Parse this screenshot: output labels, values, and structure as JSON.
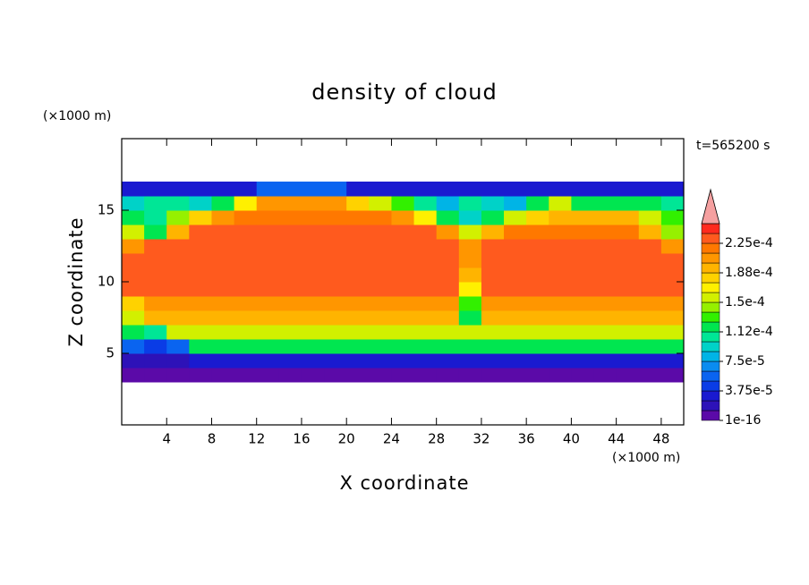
{
  "chart_data": {
    "type": "contour",
    "title": "density of cloud",
    "x_label": "X coordinate",
    "y_label": "Z coordinate",
    "x_unit": "(×1000 m)",
    "y_unit": "(×1000 m)",
    "time_label": "t=565200 s",
    "xlim": [
      0,
      50
    ],
    "ylim": [
      0,
      20
    ],
    "xticks": [
      4,
      8,
      12,
      16,
      20,
      24,
      28,
      32,
      36,
      40,
      44,
      48
    ],
    "yticks": [
      5,
      10,
      15
    ],
    "x": [
      1,
      3,
      5,
      7,
      9,
      11,
      13,
      15,
      17,
      19,
      21,
      23,
      25,
      27,
      29,
      31,
      33,
      35,
      37,
      39,
      41,
      43,
      45,
      47,
      49
    ],
    "z": [
      3.5,
      4.5,
      5.5,
      6.5,
      7.5,
      8.5,
      9.5,
      10.5,
      11.5,
      12.5,
      13.5,
      14.5,
      15.5,
      16.5
    ],
    "values": [
      [
        1e-05,
        1e-05,
        1e-05,
        1e-05,
        1e-05,
        1e-05,
        1e-05,
        1e-05,
        1e-05,
        1e-05,
        1e-05,
        1e-05,
        1e-05,
        1e-05,
        1e-05,
        1e-05,
        1e-05,
        1e-05,
        1e-05,
        1e-05,
        1e-05,
        1e-05,
        1e-05,
        1e-05,
        1e-05
      ],
      [
        2e-05,
        2e-05,
        2e-05,
        3e-05,
        3e-05,
        3e-05,
        3e-05,
        3e-05,
        3e-05,
        3e-05,
        3e-05,
        3e-05,
        3e-05,
        3e-05,
        3e-05,
        3e-05,
        3e-05,
        3e-05,
        3e-05,
        3e-05,
        3e-05,
        3e-05,
        3e-05,
        3e-05,
        3e-05
      ],
      [
        6e-05,
        4e-05,
        5e-05,
        0.00012,
        0.00012,
        0.00012,
        0.00012,
        0.00012,
        0.00012,
        0.00012,
        0.00012,
        0.00012,
        0.00012,
        0.00012,
        0.00012,
        0.00012,
        0.00012,
        0.00012,
        0.00012,
        0.00012,
        0.00012,
        0.00012,
        0.00012,
        0.00012,
        0.00012
      ],
      [
        0.00012,
        0.0001,
        0.00016,
        0.00016,
        0.00016,
        0.00016,
        0.00016,
        0.00016,
        0.00016,
        0.00016,
        0.00016,
        0.00016,
        0.00016,
        0.00016,
        0.00016,
        0.00016,
        0.00016,
        0.00016,
        0.00016,
        0.00016,
        0.00016,
        0.00016,
        0.00016,
        0.00016,
        0.00016
      ],
      [
        0.00015,
        0.00019,
        0.00019,
        0.00019,
        0.00019,
        0.00019,
        0.00019,
        0.00019,
        0.00019,
        0.00019,
        0.00019,
        0.00019,
        0.00019,
        0.00019,
        0.00019,
        0.00012,
        0.00019,
        0.00019,
        0.00019,
        0.00019,
        0.00019,
        0.00019,
        0.00019,
        0.00019,
        0.00019
      ],
      [
        0.00018,
        0.00021,
        0.00021,
        0.00021,
        0.00021,
        0.00021,
        0.00021,
        0.00021,
        0.00021,
        0.00021,
        0.00021,
        0.00021,
        0.00021,
        0.00021,
        0.00021,
        0.00013,
        0.00021,
        0.00021,
        0.00021,
        0.00021,
        0.00021,
        0.00021,
        0.00021,
        0.00021,
        0.00021
      ],
      [
        0.00023,
        0.00023,
        0.00023,
        0.00023,
        0.00023,
        0.00023,
        0.00023,
        0.00023,
        0.00023,
        0.00023,
        0.00023,
        0.00023,
        0.00023,
        0.00023,
        0.00023,
        0.00017,
        0.00023,
        0.00023,
        0.00023,
        0.00023,
        0.00023,
        0.00023,
        0.00023,
        0.00023,
        0.00023
      ],
      [
        0.00023,
        0.00023,
        0.00023,
        0.00023,
        0.00023,
        0.00023,
        0.00023,
        0.00023,
        0.00023,
        0.00023,
        0.00023,
        0.00023,
        0.00023,
        0.00023,
        0.00023,
        0.00019,
        0.00023,
        0.00023,
        0.00023,
        0.00023,
        0.00023,
        0.00023,
        0.00023,
        0.00023,
        0.00023
      ],
      [
        0.00023,
        0.00023,
        0.00023,
        0.00023,
        0.00023,
        0.00023,
        0.00023,
        0.00023,
        0.00023,
        0.00023,
        0.00023,
        0.00023,
        0.00023,
        0.00023,
        0.00023,
        0.0002,
        0.00023,
        0.00023,
        0.00023,
        0.00023,
        0.00023,
        0.00023,
        0.00023,
        0.00023,
        0.00023
      ],
      [
        0.00021,
        0.00023,
        0.00023,
        0.00023,
        0.00023,
        0.00023,
        0.00023,
        0.00023,
        0.00023,
        0.00023,
        0.00023,
        0.00023,
        0.00023,
        0.00023,
        0.00023,
        0.0002,
        0.00023,
        0.00023,
        0.00023,
        0.00023,
        0.00023,
        0.00023,
        0.00023,
        0.00023,
        0.00021
      ],
      [
        0.00015,
        0.00012,
        0.00019,
        0.00023,
        0.00023,
        0.00023,
        0.00023,
        0.00023,
        0.00023,
        0.00023,
        0.00023,
        0.00023,
        0.00023,
        0.00023,
        0.00021,
        0.00016,
        0.00019,
        0.00022,
        0.00022,
        0.00022,
        0.00022,
        0.00022,
        0.00022,
        0.00019,
        0.00014
      ],
      [
        0.00012,
        0.0001,
        0.00014,
        0.00018,
        0.0002,
        0.00022,
        0.00022,
        0.00022,
        0.00022,
        0.00022,
        0.00022,
        0.00022,
        0.0002,
        0.00017,
        0.00012,
        9e-05,
        0.00012,
        0.00016,
        0.00018,
        0.00019,
        0.00019,
        0.00019,
        0.00019,
        0.00015,
        0.00013
      ],
      [
        9e-05,
        0.0001,
        0.00011,
        9e-05,
        0.00012,
        0.00017,
        0.00021,
        0.00021,
        0.00021,
        0.00021,
        0.00018,
        0.00015,
        0.00013,
        0.0001,
        8e-05,
        0.00011,
        9e-05,
        8e-05,
        0.00012,
        0.00015,
        0.00012,
        0.00012,
        0.00012,
        0.00012,
        0.00011
      ],
      [
        3e-05,
        3e-05,
        3e-05,
        3e-05,
        3e-05,
        3e-05,
        5e-05,
        5e-05,
        5e-05,
        5e-05,
        3e-05,
        3e-05,
        3e-05,
        3e-05,
        3e-05,
        3e-05,
        3e-05,
        3e-05,
        3e-05,
        3e-05,
        3e-05,
        3e-05,
        3e-05,
        3e-05,
        3e-05
      ]
    ],
    "levels": [
      1e-16,
      1.25e-05,
      2.5e-05,
      3.75e-05,
      5e-05,
      6.25e-05,
      7.5e-05,
      8.75e-05,
      0.0001,
      0.0001125,
      0.000125,
      0.0001375,
      0.00015,
      0.0001625,
      0.000175,
      0.0001875,
      0.0002,
      0.0002125,
      0.000225,
      0.0002375,
      0.00025
    ],
    "colors": [
      "#5b0aa8",
      "#2d12b8",
      "#1a1ad0",
      "#0a3ce6",
      "#0a64f0",
      "#0a8cf0",
      "#00b4e6",
      "#00d2c8",
      "#00e696",
      "#00e650",
      "#32f000",
      "#96f000",
      "#d2f000",
      "#fff000",
      "#ffd200",
      "#ffb400",
      "#ff9600",
      "#ff7800",
      "#ff5a1e",
      "#ff2a1e",
      "#f5a0a0"
    ],
    "level_ticks": [
      {
        "value": 1e-16,
        "label": "1e-16"
      },
      {
        "value": 3.75e-05,
        "label": "3.75e-5"
      },
      {
        "value": 7.5e-05,
        "label": "7.5e-5"
      },
      {
        "value": 0.0001125,
        "label": "1.12e-4"
      },
      {
        "value": 0.00015,
        "label": "1.5e-4"
      },
      {
        "value": 0.0001875,
        "label": "1.88e-4"
      },
      {
        "value": 0.000225,
        "label": "2.25e-4"
      }
    ]
  }
}
